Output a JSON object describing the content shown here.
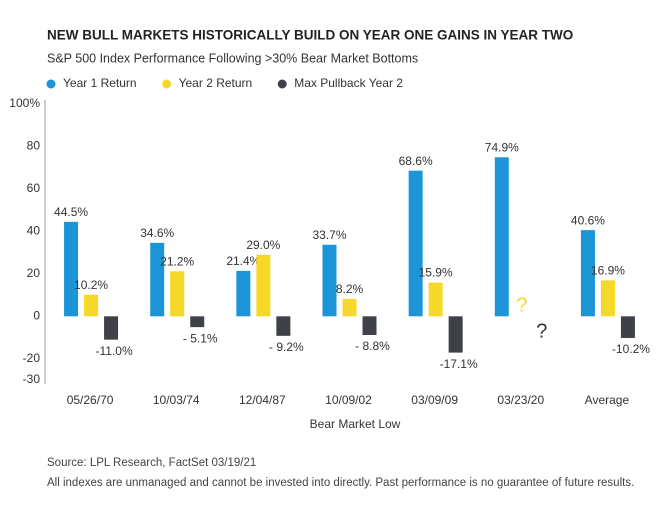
{
  "chart_data": {
    "type": "bar",
    "title": "NEW BULL MARKETS HISTORICALLY BUILD ON YEAR ONE GAINS IN YEAR TWO",
    "subtitle": "S&P 500 Index Performance Following >30% Bear Market Bottoms",
    "x_label": "Bear Market Low",
    "source": "Source: LPL Research, FactSet   03/19/21",
    "footnote": "All indexes are unmanaged and cannot be invested into directly. Past performance is no guarantee of future results.",
    "categories": [
      "05/26/70",
      "10/03/74",
      "12/04/87",
      "10/09/02",
      "03/09/09",
      "03/23/20",
      "Average"
    ],
    "series": [
      {
        "name": "Year 1 Return",
        "color": "#1b95d8",
        "values": [
          44.5,
          34.6,
          21.4,
          33.7,
          68.6,
          74.9,
          40.6
        ],
        "value_labels": [
          "44.5%",
          "34.6%",
          "21.4%",
          "33.7%",
          "68.6%",
          "74.9%",
          "40.6%"
        ]
      },
      {
        "name": "Year 2 Return",
        "color": "#f6d928",
        "values": [
          10.2,
          21.2,
          29.0,
          8.2,
          15.9,
          null,
          16.9
        ],
        "value_labels": [
          "10.2%",
          "21.2%",
          "29.0%",
          "8.2%",
          "15.9%",
          "?",
          "16.9%"
        ]
      },
      {
        "name": "Max Pullback Year 2",
        "color": "#3e4148",
        "values": [
          -11.0,
          -5.1,
          -9.2,
          -8.8,
          -17.1,
          null,
          -10.2
        ],
        "value_labels": [
          "-11.0%",
          "- 5.1%",
          "- 9.2%",
          "- 8.8%",
          "-17.1%",
          "?",
          "-10.2%"
        ]
      }
    ],
    "ylim": [
      -30,
      100
    ],
    "yticks": [
      {
        "value": 100,
        "label": "100%"
      },
      80,
      60,
      40,
      20,
      0,
      -20,
      -30
    ],
    "legend": "top-left",
    "grid": false
  }
}
